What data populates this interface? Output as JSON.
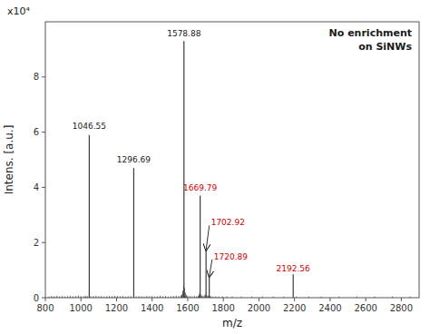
{
  "chart_data": {
    "type": "spectrum",
    "x_label": "m/z",
    "y_label": "Intens. [a.u.]",
    "scale_label": "x10⁴",
    "note": "No enrichment\n on SiNWs",
    "xlim": [
      800,
      2900
    ],
    "ylim": [
      0,
      10
    ],
    "xticks": [
      800,
      1000,
      1200,
      1400,
      1600,
      1800,
      2000,
      2200,
      2400,
      2600,
      2800
    ],
    "yticks": [
      0,
      2,
      4,
      6,
      8
    ],
    "grid": false,
    "series": [
      {
        "color": "#3a3a3a",
        "x": [
          820,
          835,
          850,
          865,
          880,
          895,
          910,
          925,
          940,
          955,
          970,
          985,
          1000,
          1015,
          1025,
          1035,
          1055,
          1070,
          1085,
          1100,
          1115,
          1130,
          1145,
          1160,
          1175,
          1190,
          1205,
          1220,
          1235,
          1250,
          1265,
          1280,
          1310,
          1325,
          1340,
          1355,
          1370,
          1385,
          1400,
          1415,
          1430,
          1445,
          1460,
          1475,
          1490,
          1505,
          1520,
          1535,
          1550,
          1562,
          1567,
          1572,
          1577,
          1582,
          1587,
          1592,
          1600,
          1612,
          1625,
          1638,
          1650,
          1660,
          1663,
          1667,
          1672,
          1678,
          1685,
          1693,
          1698,
          1707,
          1713,
          1718,
          1723,
          1730,
          1742,
          1758,
          1775,
          1795,
          1820,
          1850,
          1900,
          1960,
          2020,
          2080,
          2140,
          2210,
          2280,
          2350,
          2450,
          2550,
          2650,
          2750,
          2850
        ],
        "values": [
          0.04,
          0.06,
          0.05,
          0.07,
          0.05,
          0.06,
          0.04,
          0.05,
          0.07,
          0.05,
          0.06,
          0.08,
          0.06,
          0.05,
          0.07,
          0.06,
          0.05,
          0.06,
          0.07,
          0.05,
          0.06,
          0.04,
          0.05,
          0.06,
          0.05,
          0.07,
          0.06,
          0.05,
          0.06,
          0.04,
          0.05,
          0.06,
          0.05,
          0.06,
          0.05,
          0.04,
          0.06,
          0.05,
          0.06,
          0.04,
          0.05,
          0.07,
          0.05,
          0.06,
          0.04,
          0.05,
          0.06,
          0.07,
          0.06,
          0.08,
          0.12,
          0.25,
          0.45,
          0.35,
          0.18,
          0.1,
          0.07,
          0.06,
          0.05,
          0.06,
          0.05,
          0.07,
          0.1,
          0.18,
          0.12,
          0.08,
          0.06,
          0.08,
          0.12,
          0.09,
          0.07,
          0.08,
          0.06,
          0.05,
          0.04,
          0.05,
          0.04,
          0.05,
          0.04,
          0.04,
          0.04,
          0.04,
          0.04,
          0.04,
          0.04,
          0.04,
          0.04,
          0.04,
          0.04,
          0.04,
          0.04,
          0.04,
          0.04
        ]
      },
      {
        "color": "#3a3a3a",
        "x": [
          1046.55,
          1296.69,
          1578.88
        ],
        "values": [
          5.9,
          4.7,
          9.3
        ]
      },
      {
        "color": "#3a3a3a",
        "x": [
          1669.79,
          1702.92,
          1720.89,
          2192.56
        ],
        "values": [
          3.7,
          1.7,
          0.75,
          0.85
        ]
      }
    ],
    "annotations": [
      {
        "text": "1046.55",
        "x": 1046.55,
        "y": 6.05,
        "color": "#1a1a1a"
      },
      {
        "text": "1296.69",
        "x": 1296.69,
        "y": 4.82,
        "color": "#1a1a1a"
      },
      {
        "text": "1578.88",
        "x": 1578.88,
        "y": 9.42,
        "color": "#1a1a1a"
      },
      {
        "text": "1669.79",
        "x": 1669.79,
        "y": 3.82,
        "color": "#cc0000"
      },
      {
        "text": "1702.92",
        "x": 1726,
        "y": 2.55,
        "color": "#cc0000",
        "arrow_to": [
          1702.92,
          1.72
        ],
        "arrow_color": "#1a1a1a"
      },
      {
        "text": "1720.89",
        "x": 1742,
        "y": 1.32,
        "color": "#cc0000",
        "arrow_to": [
          1720.89,
          0.76
        ],
        "arrow_color": "#1a1a1a"
      },
      {
        "text": "2192.56",
        "x": 2192.56,
        "y": 0.88,
        "color": "#cc0000"
      }
    ]
  }
}
